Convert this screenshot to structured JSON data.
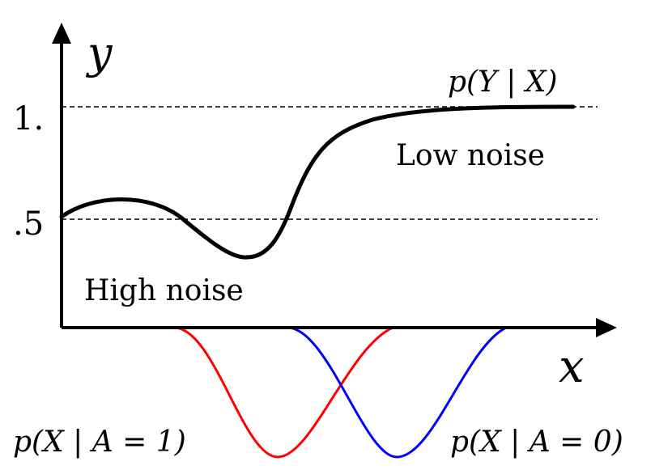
{
  "axes": {
    "y_label": "y",
    "x_label": "x",
    "y_ticks": [
      "1.",
      ".5"
    ]
  },
  "labels": {
    "p_y_given_x": "p(Y | X)",
    "low_noise": "Low noise",
    "high_noise": "High noise",
    "p_x_given_a1": "p(X | A = 1)",
    "p_x_given_a0": "p(X | A = 0)"
  },
  "colors": {
    "axis": "#000000",
    "curve_py": "#000000",
    "curve_a1": "#ff0000",
    "curve_a0": "#0000ff"
  }
}
